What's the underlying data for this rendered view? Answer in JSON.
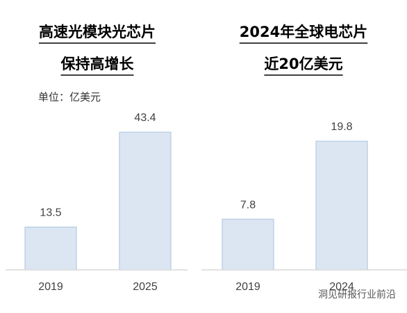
{
  "chart_data": [
    {
      "type": "bar",
      "title": [
        "高速光模块光芯片",
        "保持高增长"
      ],
      "subtitle": "单位：亿美元",
      "categories": [
        "2019",
        "2025"
      ],
      "values": [
        13.5,
        43.4
      ],
      "color": "#dce6f2"
    },
    {
      "type": "bar",
      "title": [
        "2024年全球电芯片",
        "近20亿美元"
      ],
      "categories": [
        "2019",
        "2024"
      ],
      "values": [
        7.8,
        19.8
      ],
      "color": "#dce6f2"
    }
  ],
  "watermark": "洞见研报行业前沿"
}
